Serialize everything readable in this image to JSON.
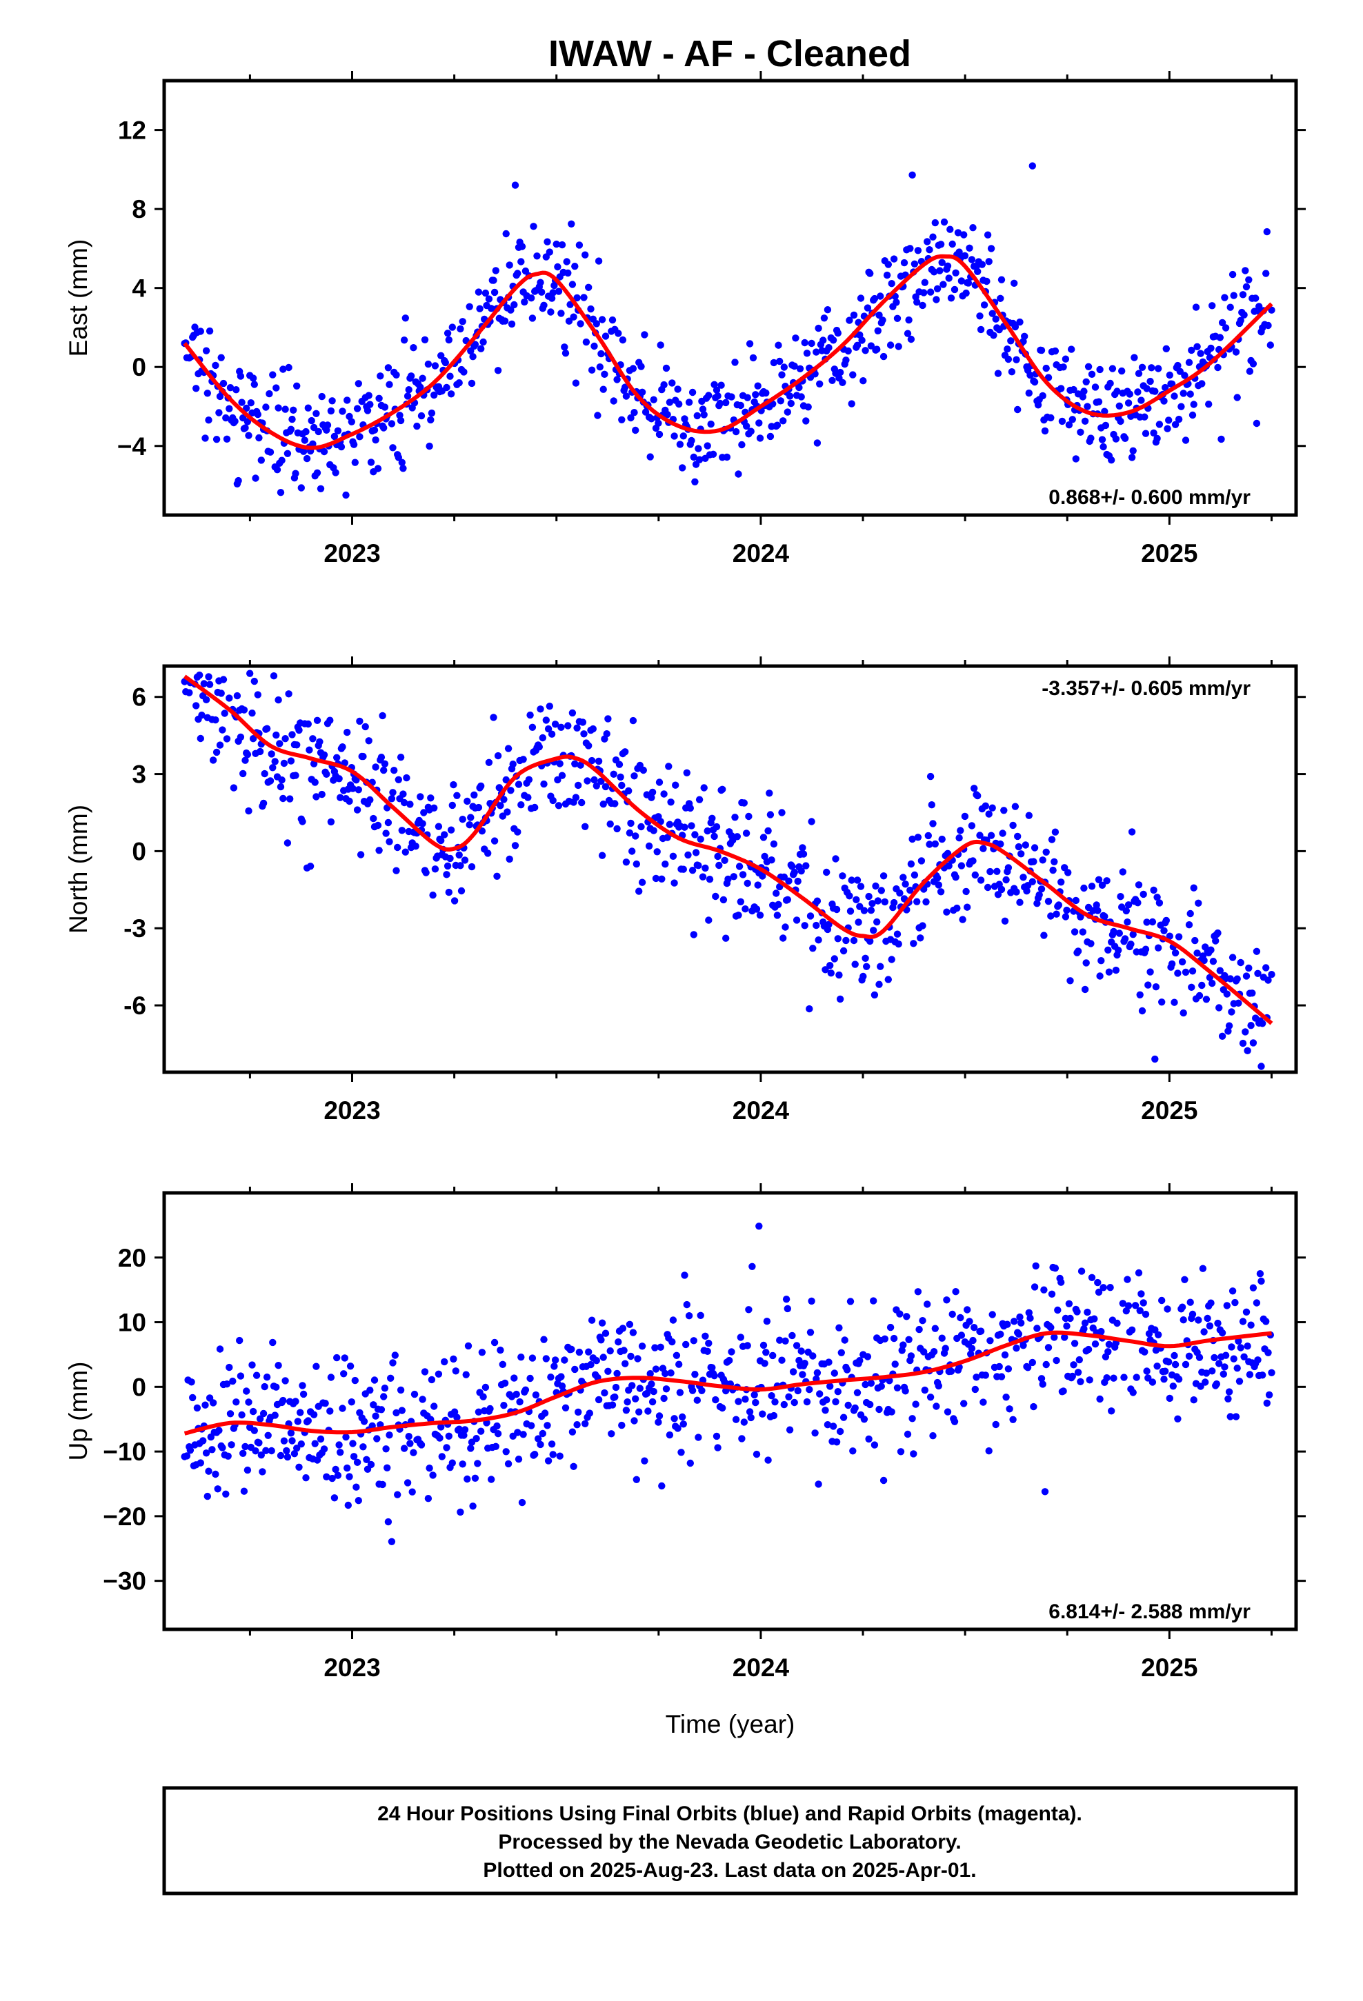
{
  "title": "IWAW  - AF - Cleaned",
  "footer": {
    "line1": "24 Hour Positions Using Final Orbits (blue) and Rapid Orbits (magenta).",
    "line2": "Processed by the Nevada Geodetic Laboratory.",
    "line3": "Plotted on 2025-Aug-23. Last data on 2025-Apr-01."
  },
  "colors": {
    "points": "#0000ff",
    "fit": "#ff0000",
    "frame": "#000000"
  },
  "chart_data": [
    {
      "type": "scatter",
      "component": "east",
      "ylabel": "East (mm)",
      "xlabel": "",
      "rate_label": "0.868+/- 0.600 mm/yr",
      "rate_position": "bottom-right",
      "xlim": [
        2022.54,
        2025.31
      ],
      "ylim": [
        -7.5,
        14.5
      ],
      "yticks": [
        -4,
        0,
        4,
        8,
        12
      ],
      "ytick_labels": [
        "−4",
        "0",
        "4",
        "8",
        "12"
      ],
      "xticks": [
        2023,
        2024,
        2025
      ],
      "xtick_labels": [
        "2023",
        "2024",
        "2025"
      ],
      "data_range": [
        2022.59,
        2025.25
      ],
      "scatter_sigma_mm": 1.4,
      "fit_curve": {
        "x": [
          2022.59,
          2022.7,
          2022.8,
          2022.9,
          2023.0,
          2023.1,
          2023.2,
          2023.3,
          2023.4,
          2023.45,
          2023.5,
          2023.6,
          2023.7,
          2023.8,
          2023.9,
          2024.0,
          2024.1,
          2024.2,
          2024.3,
          2024.4,
          2024.45,
          2024.5,
          2024.6,
          2024.7,
          2024.8,
          2024.9,
          2025.0,
          2025.1,
          2025.25
        ],
        "y": [
          1.2,
          -1.6,
          -3.3,
          -4.1,
          -3.4,
          -2.3,
          -0.8,
          1.5,
          4.0,
          4.7,
          4.4,
          1.6,
          -1.5,
          -3.0,
          -3.2,
          -2.0,
          -0.6,
          1.1,
          3.3,
          5.2,
          5.6,
          5.1,
          2.2,
          -0.8,
          -2.3,
          -2.3,
          -1.2,
          0.2,
          3.2
        ]
      }
    },
    {
      "type": "scatter",
      "component": "north",
      "ylabel": "North (mm)",
      "xlabel": "",
      "rate_label": "-3.357+/- 0.605 mm/yr",
      "rate_position": "top-right",
      "xlim": [
        2022.54,
        2025.31
      ],
      "ylim": [
        -8.6,
        7.2
      ],
      "yticks": [
        -6,
        -3,
        0,
        3,
        6
      ],
      "ytick_labels": [
        "-6",
        "-3",
        "0",
        "3",
        "6"
      ],
      "xticks": [
        2023,
        2024,
        2025
      ],
      "xtick_labels": [
        "2023",
        "2024",
        "2025"
      ],
      "data_range": [
        2022.59,
        2025.25
      ],
      "scatter_sigma_mm": 1.3,
      "fit_curve": {
        "x": [
          2022.59,
          2022.7,
          2022.8,
          2022.9,
          2023.0,
          2023.1,
          2023.2,
          2023.25,
          2023.3,
          2023.4,
          2023.5,
          2023.55,
          2023.6,
          2023.7,
          2023.8,
          2023.9,
          2024.0,
          2024.1,
          2024.2,
          2024.25,
          2024.3,
          2024.4,
          2024.5,
          2024.55,
          2024.6,
          2024.7,
          2024.8,
          2024.9,
          2025.0,
          2025.1,
          2025.25
        ],
        "y": [
          6.8,
          5.5,
          4.1,
          3.6,
          3.1,
          1.7,
          0.3,
          0.1,
          0.7,
          2.9,
          3.6,
          3.6,
          3.1,
          1.6,
          0.5,
          0.0,
          -0.7,
          -1.8,
          -3.0,
          -3.3,
          -3.1,
          -1.2,
          0.2,
          0.3,
          -0.1,
          -1.3,
          -2.5,
          -3.0,
          -3.5,
          -4.7,
          -6.7
        ]
      }
    },
    {
      "type": "scatter",
      "component": "up",
      "ylabel": "Up (mm)",
      "xlabel": "Time (year)",
      "rate_label": "6.814+/- 2.588 mm/yr",
      "rate_position": "bottom-right",
      "xlim": [
        2022.54,
        2025.31
      ],
      "ylim": [
        -37.5,
        30
      ],
      "yticks": [
        -30,
        -20,
        -10,
        0,
        10,
        20
      ],
      "ytick_labels": [
        "−30",
        "−20",
        "−10",
        "0",
        "10",
        "20"
      ],
      "xticks": [
        2023,
        2024,
        2025
      ],
      "xtick_labels": [
        "2023",
        "2024",
        "2025"
      ],
      "data_range": [
        2022.59,
        2025.25
      ],
      "scatter_sigma_mm": 5.8,
      "fit_curve": {
        "x": [
          2022.59,
          2022.7,
          2022.8,
          2022.9,
          2023.0,
          2023.1,
          2023.2,
          2023.3,
          2023.4,
          2023.5,
          2023.6,
          2023.7,
          2023.8,
          2023.9,
          2024.0,
          2024.1,
          2024.2,
          2024.3,
          2024.4,
          2024.5,
          2024.6,
          2024.7,
          2024.8,
          2024.9,
          2025.0,
          2025.1,
          2025.25
        ],
        "y": [
          -7.2,
          -5.6,
          -5.9,
          -6.8,
          -7.0,
          -6.2,
          -5.6,
          -5.2,
          -4.0,
          -1.5,
          0.8,
          1.4,
          0.9,
          0.1,
          -0.4,
          0.4,
          1.0,
          1.5,
          2.3,
          4.0,
          6.4,
          8.3,
          8.0,
          7.1,
          6.3,
          7.2,
          8.3
        ]
      }
    }
  ]
}
